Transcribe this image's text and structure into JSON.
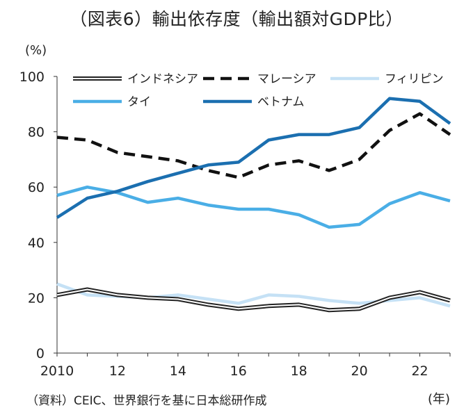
{
  "chart_data": {
    "type": "line",
    "title": "（図表6）輸出依存度（輸出額対GDP比）",
    "ylabel": "(%)",
    "xlabel": "(年)",
    "ylim": [
      0,
      100
    ],
    "xlim": [
      2010,
      2023
    ],
    "yticks": [
      0,
      20,
      40,
      60,
      80,
      100
    ],
    "xtick_values": [
      2010,
      2012,
      2014,
      2016,
      2018,
      2020,
      2022
    ],
    "xtick_labels": [
      "2010",
      "12",
      "14",
      "16",
      "18",
      "20",
      "22"
    ],
    "x": [
      2010,
      2011,
      2012,
      2013,
      2014,
      2015,
      2016,
      2017,
      2018,
      2019,
      2020,
      2021,
      2022,
      2023
    ],
    "grid": false,
    "legend_position": "top",
    "series": [
      {
        "name": "インドネシア",
        "color": "#222222",
        "style": "double",
        "values": [
          21,
          23,
          21,
          20,
          19.5,
          17.5,
          16,
          17,
          17.5,
          15.5,
          16,
          20,
          22,
          19
        ]
      },
      {
        "name": "マレーシア",
        "color": "#111111",
        "style": "dashed",
        "values": [
          78,
          77,
          72.5,
          71,
          69.5,
          66,
          63.5,
          68,
          69.5,
          66,
          70,
          80.5,
          86.5,
          79
        ]
      },
      {
        "name": "フィリピン",
        "color": "#c5e1f5",
        "style": "solid",
        "values": [
          25,
          21,
          20.5,
          20,
          21,
          19.5,
          18,
          21,
          20.5,
          19,
          18,
          19,
          20,
          17
        ]
      },
      {
        "name": "タイ",
        "color": "#4aaee6",
        "style": "solid",
        "values": [
          57,
          60,
          58,
          54.5,
          56,
          53.5,
          52,
          52,
          50,
          45.5,
          46.5,
          54,
          58,
          55
        ]
      },
      {
        "name": "ベトナム",
        "color": "#1b6fb0",
        "style": "solid",
        "values": [
          49,
          56,
          58.5,
          62,
          65,
          68,
          69,
          77,
          79,
          79,
          81.5,
          92,
          91,
          83
        ]
      }
    ],
    "source": "（資料）CEIC、世界銀行を基に日本総研作成"
  }
}
